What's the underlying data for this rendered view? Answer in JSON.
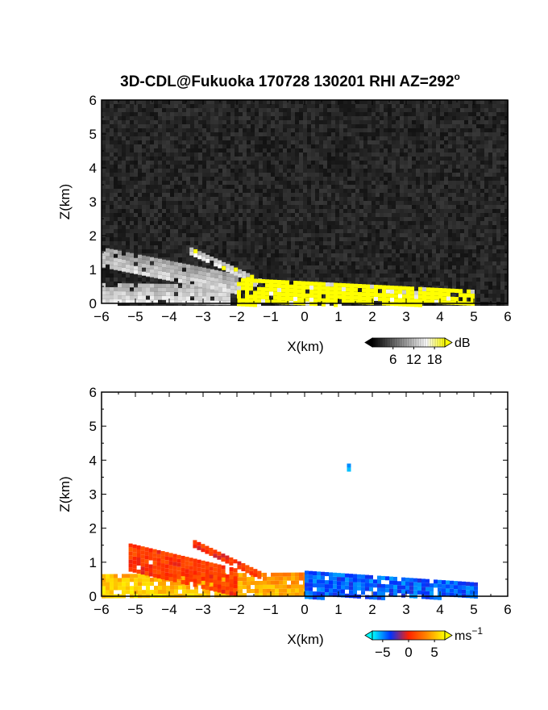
{
  "figure": {
    "title": "3D-CDL@Fukuoka 170728 130201 RHI AZ=292",
    "title_degree": "o"
  },
  "chart_data": [
    {
      "type": "heatmap",
      "field": "SNR",
      "xlabel": "X(km)",
      "ylabel": "Z(km)",
      "xlim": [
        -6,
        6
      ],
      "ylim": [
        0,
        6
      ],
      "xticks": [
        -6,
        -5,
        -4,
        -3,
        -2,
        -1,
        0,
        1,
        2,
        3,
        4,
        5,
        6
      ],
      "yticks": [
        0,
        1,
        2,
        3,
        4,
        5,
        6
      ],
      "background": "#1c1c1c",
      "colorbar": {
        "unit": "dB",
        "tick_values": [
          6,
          12,
          18
        ],
        "tick_labels": [
          "6",
          "12",
          "18"
        ],
        "range": [
          0,
          21
        ],
        "colors": [
          "#000000",
          "#555555",
          "#aaaaaa",
          "#ffffff",
          "#ffff00"
        ]
      },
      "regions": [
        {
          "label": "near-surface layer",
          "x": [
            -6,
            -2.2
          ],
          "top": [
            0.6,
            0.55
          ],
          "level": 0.75
        },
        {
          "label": "elevated layer",
          "x": [
            -6,
            -2.0
          ],
          "top": [
            1.65,
            0.85
          ],
          "level": 0.6
        },
        {
          "label": "upper streak",
          "x": [
            -3.4,
            -1.3
          ],
          "top": [
            1.65,
            0.7
          ],
          "level": 0.85
        },
        {
          "label": "strong return",
          "x": [
            -2.0,
            5.0
          ],
          "top": [
            0.75,
            0.4
          ],
          "level": 1.0
        }
      ]
    },
    {
      "type": "heatmap",
      "field": "Doppler velocity",
      "xlabel": "X(km)",
      "ylabel": "Z(km)",
      "xlim": [
        -6,
        6
      ],
      "ylim": [
        0,
        6
      ],
      "xticks": [
        -6,
        -5,
        -4,
        -3,
        -2,
        -1,
        0,
        1,
        2,
        3,
        4,
        5,
        6
      ],
      "yticks": [
        0,
        1,
        2,
        3,
        4,
        5,
        6
      ],
      "background": "#ffffff",
      "colorbar": {
        "unit": "ms",
        "unit_exponent": "-1",
        "tick_values": [
          -5,
          0,
          5
        ],
        "tick_labels": [
          "−5",
          "0",
          "5"
        ],
        "range": [
          -7,
          7
        ],
        "colors": [
          "#00ffff",
          "#0033ff",
          "#ff2200",
          "#ff8800",
          "#ffff00"
        ]
      },
      "regions": [
        {
          "label": "outflow near surface",
          "x": [
            -6,
            0
          ],
          "top": [
            0.65,
            0.7
          ],
          "value": 3.5
        },
        {
          "label": "elevated outflow",
          "x": [
            -5.2,
            -2.0
          ],
          "top": [
            1.55,
            0.8
          ],
          "value": 0.8
        },
        {
          "label": "upper streak",
          "x": [
            -3.3,
            -1.3
          ],
          "top": [
            1.65,
            0.7
          ],
          "value": 0.5
        },
        {
          "label": "inflow",
          "x": [
            0,
            5.1
          ],
          "top": [
            0.75,
            0.4
          ],
          "value": -4.2
        },
        {
          "label": "isolated echo",
          "x": [
            1.25,
            1.35
          ],
          "top": [
            3.9,
            3.9
          ],
          "value": -6
        }
      ]
    }
  ]
}
